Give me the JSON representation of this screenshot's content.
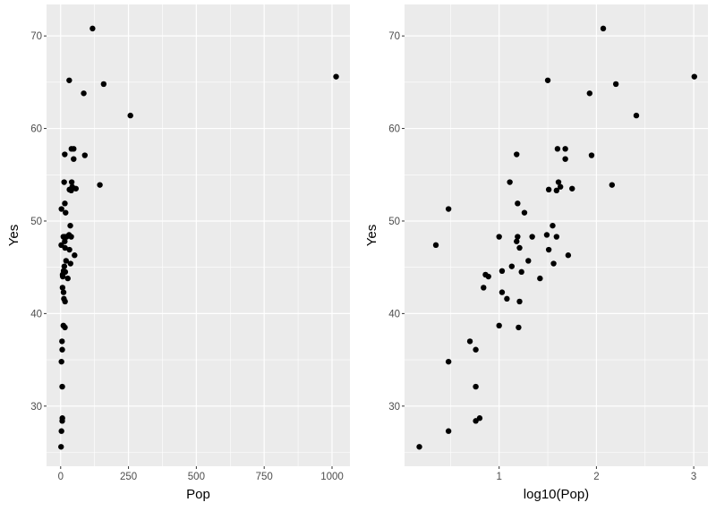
{
  "chart_data": [
    {
      "type": "scatter",
      "xlabel": "Pop",
      "ylabel": "Yes",
      "xlim": [
        -52,
        1066
      ],
      "ylim": [
        23.5,
        73.4
      ],
      "xticks": [
        0,
        250,
        500,
        750,
        1000
      ],
      "xtick_labels": [
        "0",
        "250",
        "500",
        "750",
        "1000"
      ],
      "xminor": [
        125,
        375,
        625,
        875
      ],
      "yticks": [
        30,
        40,
        50,
        60,
        70
      ],
      "ytick_labels": [
        "30",
        "40",
        "50",
        "60",
        "70"
      ],
      "yminor": [
        25,
        35,
        45,
        55,
        65
      ],
      "grid": true,
      "point_color": "#000000",
      "panel_color": "#ebebeb",
      "x": [
        1.5,
        2.2,
        3.0,
        3.0,
        3.0,
        5.0,
        5.8,
        5.8,
        5.8,
        6.3,
        6.9,
        7.2,
        7.8,
        10,
        10,
        10.7,
        10.7,
        12.0,
        12.9,
        13.5,
        15.1,
        15.1,
        15.5,
        15.5,
        15.8,
        16.2,
        16.2,
        17.0,
        18.2,
        20.0,
        21.9,
        26.3,
        30.9,
        31.6,
        32.4,
        32.4,
        35.5,
        36.3,
        38.9,
        38.9,
        39.8,
        40.7,
        42.7,
        47.9,
        47.9,
        51.3,
        56.2,
        85.1,
        89.1,
        117.5,
        144.5,
        158.5,
        257,
        1015
      ],
      "y": [
        25.6,
        47.4,
        51.3,
        34.8,
        27.3,
        37.0,
        36.1,
        32.1,
        28.4,
        28.7,
        42.8,
        44.2,
        44.0,
        48.3,
        38.7,
        44.6,
        42.3,
        41.6,
        54.2,
        45.1,
        57.2,
        47.8,
        51.9,
        48.3,
        38.5,
        47.1,
        41.3,
        44.5,
        50.9,
        45.7,
        48.3,
        43.8,
        48.5,
        65.2,
        53.4,
        46.9,
        49.5,
        45.4,
        53.3,
        48.3,
        57.8,
        54.2,
        53.7,
        57.8,
        56.7,
        46.3,
        53.5,
        63.8,
        57.1,
        70.8,
        53.9,
        64.8,
        61.4,
        65.6
      ]
    },
    {
      "type": "scatter",
      "xlabel": "log10(Pop)",
      "ylabel": "Yes",
      "xlim": [
        0.028,
        3.146
      ],
      "ylim": [
        23.5,
        73.4
      ],
      "xticks": [
        1,
        2,
        3
      ],
      "xtick_labels": [
        "1",
        "2",
        "3"
      ],
      "xminor": [
        0.5,
        1.5,
        2.5
      ],
      "yticks": [
        30,
        40,
        50,
        60,
        70
      ],
      "ytick_labels": [
        "30",
        "40",
        "50",
        "60",
        "70"
      ],
      "yminor": [
        25,
        35,
        45,
        55,
        65
      ],
      "grid": true,
      "point_color": "#000000",
      "panel_color": "#ebebeb",
      "x": [
        0.18,
        0.35,
        0.48,
        0.48,
        0.48,
        0.7,
        0.76,
        0.76,
        0.76,
        0.8,
        0.84,
        0.86,
        0.89,
        1.0,
        1.0,
        1.03,
        1.03,
        1.08,
        1.11,
        1.13,
        1.18,
        1.18,
        1.19,
        1.19,
        1.2,
        1.21,
        1.21,
        1.23,
        1.26,
        1.3,
        1.34,
        1.42,
        1.49,
        1.5,
        1.51,
        1.51,
        1.55,
        1.56,
        1.59,
        1.59,
        1.6,
        1.61,
        1.63,
        1.68,
        1.68,
        1.71,
        1.75,
        1.93,
        1.95,
        2.07,
        2.16,
        2.2,
        2.41,
        3.006
      ],
      "y": [
        25.6,
        47.4,
        51.3,
        34.8,
        27.3,
        37.0,
        36.1,
        32.1,
        28.4,
        28.7,
        42.8,
        44.2,
        44.0,
        48.3,
        38.7,
        44.6,
        42.3,
        41.6,
        54.2,
        45.1,
        57.2,
        47.8,
        51.9,
        48.3,
        38.5,
        47.1,
        41.3,
        44.5,
        50.9,
        45.7,
        48.3,
        43.8,
        48.5,
        65.2,
        53.4,
        46.9,
        49.5,
        45.4,
        53.3,
        48.3,
        57.8,
        54.2,
        53.7,
        57.8,
        56.7,
        46.3,
        53.5,
        63.8,
        57.1,
        70.8,
        53.9,
        64.8,
        61.4,
        65.6
      ]
    }
  ]
}
